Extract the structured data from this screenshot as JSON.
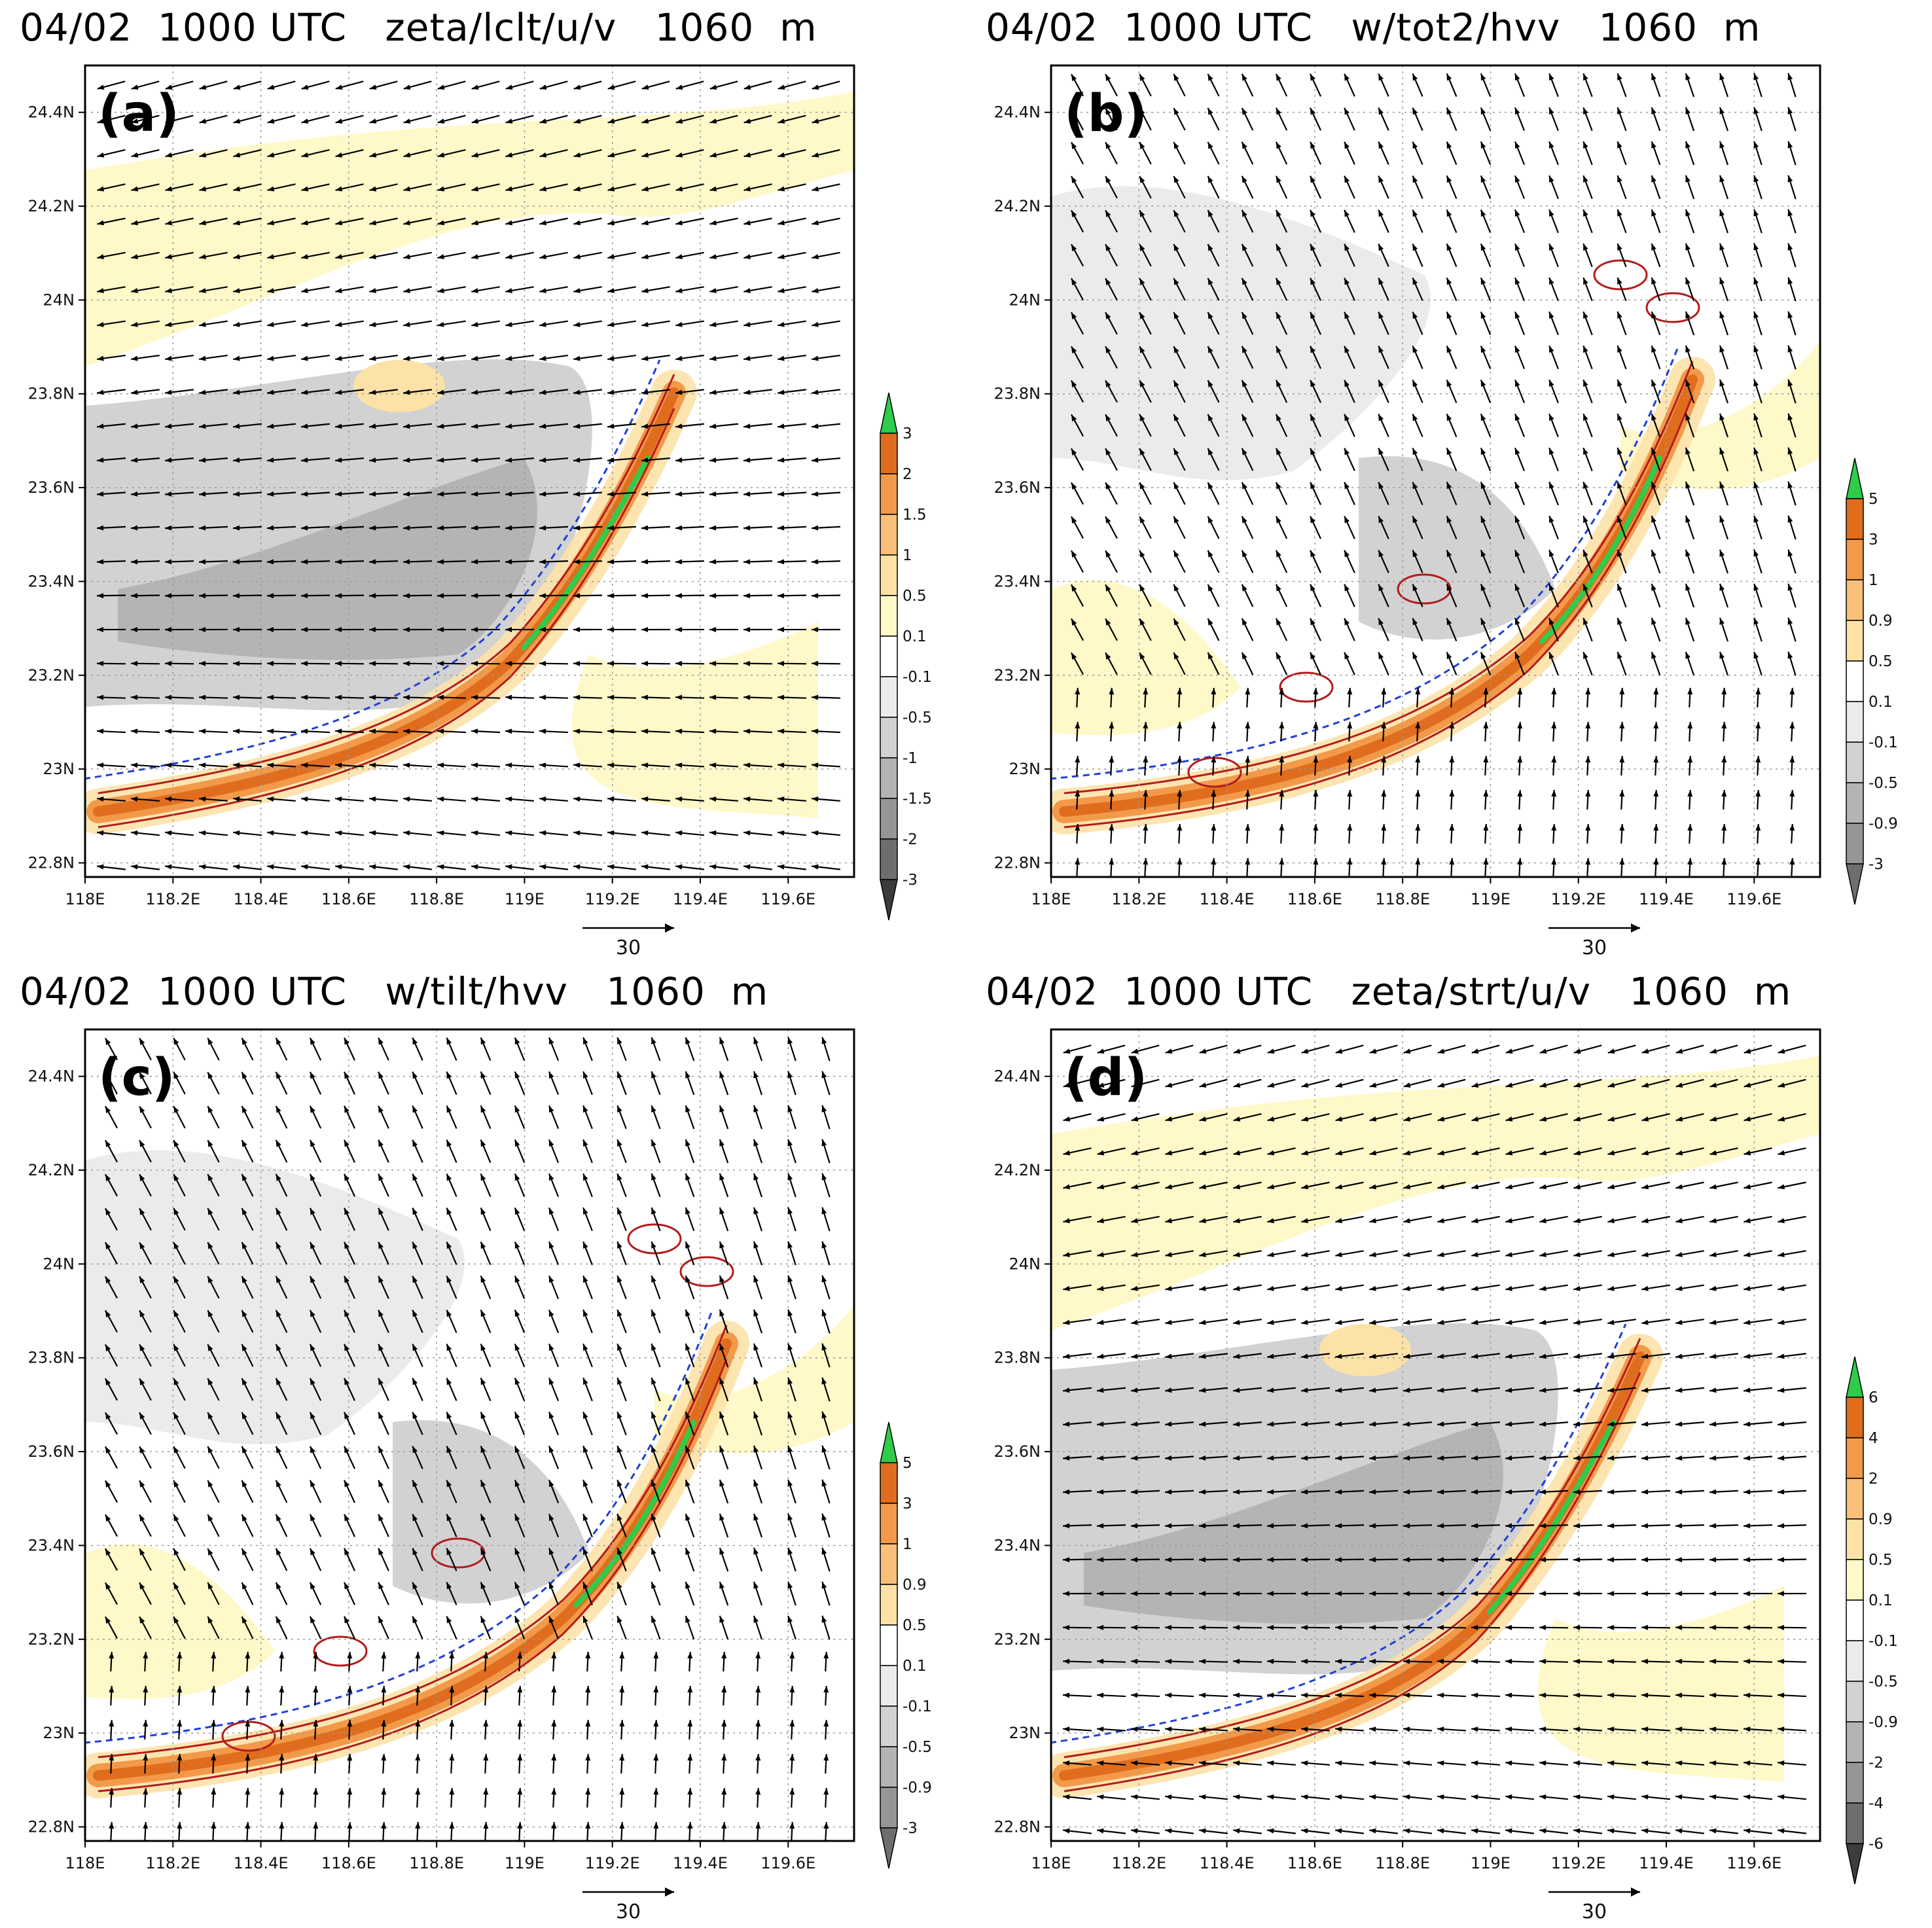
{
  "figure": {
    "colors": {
      "shade_pos": [
        "#fff8c8",
        "#fde2a8",
        "#f9c07a",
        "#f29a4a",
        "#e06d1e",
        "#2ecc4a"
      ],
      "shade_neg": [
        "#ebebeb",
        "#d2d2d2",
        "#b4b4b4",
        "#969696",
        "#6e6e6e",
        "#3c3c3c"
      ],
      "contour_pos": "#b31b1b",
      "contour_neg": "#1f3fd6",
      "arrow": "#000000",
      "grid": "#999999"
    }
  },
  "chart_data": [
    {
      "id": "a",
      "type": "map",
      "panel_label": "(a)",
      "title": "04/02  1000 UTC   zeta/lclt/u/v   1060  m",
      "x_range": [
        118.0,
        119.75
      ],
      "y_range": [
        22.77,
        24.5
      ],
      "x_ticks": [
        "118E",
        "118.2E",
        "118.4E",
        "118.6E",
        "118.8E",
        "119E",
        "119.2E",
        "119.4E",
        "119.6E"
      ],
      "y_ticks": [
        "22.8N",
        "23N",
        "23.2N",
        "23.4N",
        "23.6N",
        "23.8N",
        "24N",
        "24.2N",
        "24.4N"
      ],
      "colorbar": [
        "3",
        "2",
        "1.5",
        "1",
        "0.5",
        "0.1",
        "-0.1",
        "-0.5",
        "-1",
        "-1.5",
        "-2",
        "-3"
      ],
      "reference_vector": "30",
      "wind_regime": "northeasterly"
    },
    {
      "id": "b",
      "type": "map",
      "panel_label": "(b)",
      "title": "04/02  1000 UTC   w/tot2/hvv   1060  m",
      "x_range": [
        118.0,
        119.75
      ],
      "y_range": [
        22.77,
        24.5
      ],
      "x_ticks": [
        "118E",
        "118.2E",
        "118.4E",
        "118.6E",
        "118.8E",
        "119E",
        "119.2E",
        "119.4E",
        "119.6E"
      ],
      "y_ticks": [
        "22.8N",
        "23N",
        "23.2N",
        "23.4N",
        "23.6N",
        "23.8N",
        "24N",
        "24.2N",
        "24.4N"
      ],
      "colorbar": [
        "5",
        "3",
        "1",
        "0.9",
        "0.5",
        "0.1",
        "-0.1",
        "-0.5",
        "-0.9",
        "-3"
      ],
      "reference_vector": "30",
      "wind_regime": "southeasterly"
    },
    {
      "id": "c",
      "type": "map",
      "panel_label": "(c)",
      "title": "04/02  1000 UTC   w/tilt/hvv   1060  m",
      "x_range": [
        118.0,
        119.75
      ],
      "y_range": [
        22.77,
        24.5
      ],
      "x_ticks": [
        "118E",
        "118.2E",
        "118.4E",
        "118.6E",
        "118.8E",
        "119E",
        "119.2E",
        "119.4E",
        "119.6E"
      ],
      "y_ticks": [
        "22.8N",
        "23N",
        "23.2N",
        "23.4N",
        "23.6N",
        "23.8N",
        "24N",
        "24.2N",
        "24.4N"
      ],
      "colorbar": [
        "5",
        "3",
        "1",
        "0.9",
        "0.5",
        "0.1",
        "-0.1",
        "-0.5",
        "-0.9",
        "-3"
      ],
      "reference_vector": "30",
      "wind_regime": "southeasterly"
    },
    {
      "id": "d",
      "type": "map",
      "panel_label": "(d)",
      "title": "04/02  1000 UTC   zeta/strt/u/v   1060  m",
      "x_range": [
        118.0,
        119.75
      ],
      "y_range": [
        22.77,
        24.5
      ],
      "x_ticks": [
        "118E",
        "118.2E",
        "118.4E",
        "118.6E",
        "118.8E",
        "119E",
        "119.2E",
        "119.4E",
        "119.6E"
      ],
      "y_ticks": [
        "22.8N",
        "23N",
        "23.2N",
        "23.4N",
        "23.6N",
        "23.8N",
        "24N",
        "24.2N",
        "24.4N"
      ],
      "colorbar": [
        "6",
        "4",
        "2",
        "0.9",
        "0.5",
        "0.1",
        "-0.1",
        "-0.5",
        "-0.9",
        "-2",
        "-4",
        "-6"
      ],
      "reference_vector": "30",
      "wind_regime": "northeasterly"
    }
  ]
}
